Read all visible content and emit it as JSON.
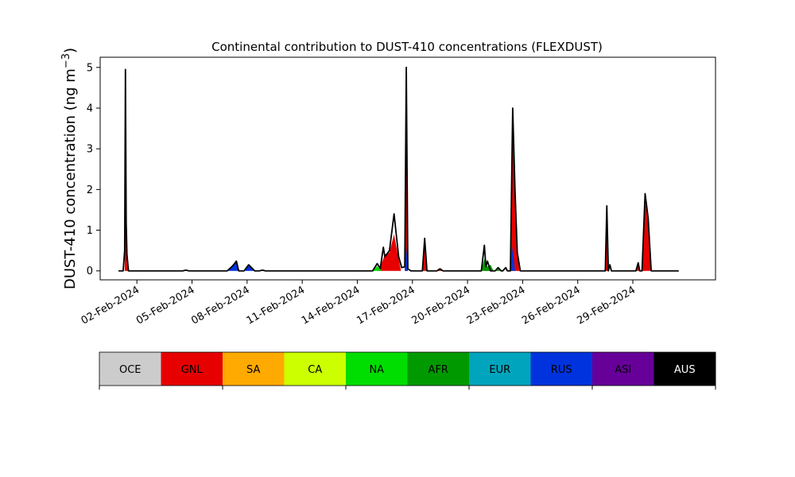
{
  "chart_data": {
    "type": "area",
    "title": "Continental contribution to DUST-410 concentrations (FLEXDUST)",
    "ylabel_main": "DUST-410 concentration (ng m",
    "ylabel_unit_exp": "−3",
    "ylabel_close": ")",
    "xlabel": "",
    "ylim": [
      -0.22,
      5.25
    ],
    "yticks": [
      0,
      1,
      2,
      3,
      4,
      5
    ],
    "x_range_days": [
      "2024-01-31T00:00",
      "2024-03-04T12:00"
    ],
    "xtick_labels": [
      "02-Feb-2024",
      "05-Feb-2024",
      "08-Feb-2024",
      "11-Feb-2024",
      "14-Feb-2024",
      "17-Feb-2024",
      "20-Feb-2024",
      "23-Feb-2024",
      "26-Feb-2024",
      "29-Feb-2024"
    ],
    "xtick_dates": [
      "2024-02-02",
      "2024-02-05",
      "2024-02-08",
      "2024-02-11",
      "2024-02-14",
      "2024-02-17",
      "2024-02-20",
      "2024-02-23",
      "2024-02-26",
      "2024-02-29"
    ],
    "grid": false,
    "series_order": [
      "GNL",
      "RUS",
      "NA",
      "AFR"
    ],
    "series": [
      {
        "name": "GNL",
        "color": "#e60000",
        "points": [
          [
            "2024-02-01T08:00",
            0
          ],
          [
            "2024-02-01T09:00",
            3.7
          ],
          [
            "2024-02-01T10:00",
            1.0
          ],
          [
            "2024-02-01T11:00",
            0.2
          ],
          [
            "2024-02-01T13:00",
            0
          ],
          [
            "2024-02-15T02:00",
            0
          ],
          [
            "2024-02-15T08:00",
            0.2
          ],
          [
            "2024-02-15T12:00",
            0.4
          ],
          [
            "2024-02-15T18:00",
            0.45
          ],
          [
            "2024-02-16T00:00",
            0.9
          ],
          [
            "2024-02-16T06:00",
            0.3
          ],
          [
            "2024-02-16T09:00",
            0
          ],
          [
            "2024-02-16T14:00",
            0
          ],
          [
            "2024-02-16T16:00",
            4.4
          ],
          [
            "2024-02-16T18:00",
            0
          ],
          [
            "2024-02-17T13:00",
            0
          ],
          [
            "2024-02-17T16:00",
            0.7
          ],
          [
            "2024-02-17T19:00",
            0
          ],
          [
            "2024-02-18T08:00",
            0
          ],
          [
            "2024-02-18T12:00",
            0.05
          ],
          [
            "2024-02-18T16:00",
            0
          ],
          [
            "2024-02-20T22:00",
            0
          ],
          [
            "2024-02-21T02:00",
            0.12
          ],
          [
            "2024-02-21T04:00",
            0
          ],
          [
            "2024-02-22T08:00",
            0
          ],
          [
            "2024-02-22T11:00",
            3.3
          ],
          [
            "2024-02-22T14:00",
            1.8
          ],
          [
            "2024-02-22T17:00",
            0.4
          ],
          [
            "2024-02-22T21:00",
            0
          ],
          [
            "2024-02-27T12:00",
            0
          ],
          [
            "2024-02-27T14:00",
            1.2
          ],
          [
            "2024-02-27T16:00",
            0
          ],
          [
            "2024-02-29T04:00",
            0
          ],
          [
            "2024-02-29T07:00",
            0.15
          ],
          [
            "2024-02-29T09:00",
            0
          ],
          [
            "2024-02-29T12:00",
            0
          ],
          [
            "2024-02-29T16:00",
            1.7
          ],
          [
            "2024-02-29T20:00",
            1.3
          ],
          [
            "2024-03-01T00:00",
            0
          ]
        ]
      },
      {
        "name": "RUS",
        "color": "#0033dd",
        "points": [
          [
            "2024-02-04T12:00",
            0
          ],
          [
            "2024-02-04T16:00",
            0.02
          ],
          [
            "2024-02-04T20:00",
            0
          ],
          [
            "2024-02-06T22:00",
            0
          ],
          [
            "2024-02-07T05:00",
            0.12
          ],
          [
            "2024-02-07T10:00",
            0.24
          ],
          [
            "2024-02-07T13:00",
            0
          ],
          [
            "2024-02-07T20:00",
            0
          ],
          [
            "2024-02-08T02:00",
            0.15
          ],
          [
            "2024-02-08T10:00",
            0
          ],
          [
            "2024-02-08T16:00",
            0
          ],
          [
            "2024-02-08T20:00",
            0.02
          ],
          [
            "2024-02-09T00:00",
            0
          ],
          [
            "2024-02-16T14:00",
            0
          ],
          [
            "2024-02-16T16:00",
            0.6
          ],
          [
            "2024-02-16T18:00",
            0
          ],
          [
            "2024-02-22T08:00",
            0
          ],
          [
            "2024-02-22T11:00",
            0.6
          ],
          [
            "2024-02-22T14:00",
            0
          ]
        ]
      },
      {
        "name": "NA",
        "color": "#00dd00",
        "points": [
          [
            "2024-02-14T20:00",
            0
          ],
          [
            "2024-02-15T02:00",
            0.12
          ],
          [
            "2024-02-15T08:00",
            0
          ]
        ]
      },
      {
        "name": "AFR",
        "color": "#009900",
        "points": [
          [
            "2024-02-20T18:00",
            0
          ],
          [
            "2024-02-20T22:00",
            0.3
          ],
          [
            "2024-02-21T02:00",
            0.1
          ],
          [
            "2024-02-21T06:00",
            0.15
          ],
          [
            "2024-02-21T10:00",
            0
          ],
          [
            "2024-02-21T12:00",
            0
          ],
          [
            "2024-02-21T16:00",
            0.05
          ],
          [
            "2024-02-21T20:00",
            0
          ]
        ]
      }
    ],
    "total": [
      [
        "2024-02-01T06:00",
        0.0
      ],
      [
        "2024-02-01T08:00",
        0.5
      ],
      [
        "2024-02-01T09:00",
        4.95
      ],
      [
        "2024-02-01T10:00",
        1.2
      ],
      [
        "2024-02-01T11:00",
        0.4
      ],
      [
        "2024-02-01T13:00",
        0.0
      ],
      [
        "2024-02-04T12:00",
        0.0
      ],
      [
        "2024-02-04T16:00",
        0.02
      ],
      [
        "2024-02-04T20:00",
        0.0
      ],
      [
        "2024-02-06T22:00",
        0.0
      ],
      [
        "2024-02-07T05:00",
        0.12
      ],
      [
        "2024-02-07T10:00",
        0.24
      ],
      [
        "2024-02-07T13:00",
        0.0
      ],
      [
        "2024-02-07T20:00",
        0.0
      ],
      [
        "2024-02-08T02:00",
        0.15
      ],
      [
        "2024-02-08T10:00",
        0.0
      ],
      [
        "2024-02-08T16:00",
        0.0
      ],
      [
        "2024-02-08T20:00",
        0.02
      ],
      [
        "2024-02-09T00:00",
        0.0
      ],
      [
        "2024-02-14T20:00",
        0.0
      ],
      [
        "2024-02-15T02:00",
        0.18
      ],
      [
        "2024-02-15T06:00",
        0.06
      ],
      [
        "2024-02-15T10:00",
        0.58
      ],
      [
        "2024-02-15T12:00",
        0.35
      ],
      [
        "2024-02-15T18:00",
        0.5
      ],
      [
        "2024-02-16T00:00",
        1.4
      ],
      [
        "2024-02-16T06:00",
        0.35
      ],
      [
        "2024-02-16T10:00",
        0.08
      ],
      [
        "2024-02-16T14:00",
        0.1
      ],
      [
        "2024-02-16T16:00",
        5.0
      ],
      [
        "2024-02-16T18:00",
        0.05
      ],
      [
        "2024-02-16T22:00",
        0.0
      ],
      [
        "2024-02-17T13:00",
        0.0
      ],
      [
        "2024-02-17T16:00",
        0.8
      ],
      [
        "2024-02-17T19:00",
        0.0
      ],
      [
        "2024-02-18T08:00",
        0.0
      ],
      [
        "2024-02-18T12:00",
        0.05
      ],
      [
        "2024-02-18T16:00",
        0.0
      ],
      [
        "2024-02-20T18:00",
        0.0
      ],
      [
        "2024-02-20T22:00",
        0.63
      ],
      [
        "2024-02-21T00:00",
        0.1
      ],
      [
        "2024-02-21T02:00",
        0.24
      ],
      [
        "2024-02-21T06:00",
        0.0
      ],
      [
        "2024-02-21T12:00",
        0.0
      ],
      [
        "2024-02-21T16:00",
        0.08
      ],
      [
        "2024-02-21T20:00",
        0.0
      ],
      [
        "2024-02-21T22:00",
        0.0
      ],
      [
        "2024-02-22T02:00",
        0.08
      ],
      [
        "2024-02-22T04:00",
        0.0
      ],
      [
        "2024-02-22T08:00",
        0.0
      ],
      [
        "2024-02-22T11:00",
        4.0
      ],
      [
        "2024-02-22T14:00",
        2.0
      ],
      [
        "2024-02-22T17:00",
        0.45
      ],
      [
        "2024-02-22T21:00",
        0.0
      ],
      [
        "2024-02-27T12:00",
        0.0
      ],
      [
        "2024-02-27T14:00",
        1.6
      ],
      [
        "2024-02-27T16:00",
        0.0
      ],
      [
        "2024-02-27T18:00",
        0.15
      ],
      [
        "2024-02-27T20:00",
        0.0
      ],
      [
        "2024-02-29T04:00",
        0.0
      ],
      [
        "2024-02-29T07:00",
        0.2
      ],
      [
        "2024-02-29T09:00",
        0.0
      ],
      [
        "2024-02-29T12:00",
        0.0
      ],
      [
        "2024-02-29T16:00",
        1.9
      ],
      [
        "2024-02-29T20:00",
        1.3
      ],
      [
        "2024-03-01T00:00",
        0.0
      ]
    ],
    "baseline_dates": [
      "2024-02-01T00:00",
      "2024-03-02T12:00"
    ],
    "legend_placement": "bottom",
    "legend": [
      {
        "name": "OCE",
        "color": "#cccccc",
        "text_color": "#000000"
      },
      {
        "name": "GNL",
        "color": "#e60000",
        "text_color": "#000000"
      },
      {
        "name": "SA",
        "color": "#ffaa00",
        "text_color": "#000000"
      },
      {
        "name": "CA",
        "color": "#ccff00",
        "text_color": "#000000"
      },
      {
        "name": "NA",
        "color": "#00dd00",
        "text_color": "#000000"
      },
      {
        "name": "AFR",
        "color": "#009900",
        "text_color": "#000000"
      },
      {
        "name": "EUR",
        "color": "#00a5bd",
        "text_color": "#000000"
      },
      {
        "name": "RUS",
        "color": "#0033dd",
        "text_color": "#000000"
      },
      {
        "name": "ASI",
        "color": "#660099",
        "text_color": "#000000"
      },
      {
        "name": "AUS",
        "color": "#000000",
        "text_color": "#ffffff"
      }
    ]
  }
}
